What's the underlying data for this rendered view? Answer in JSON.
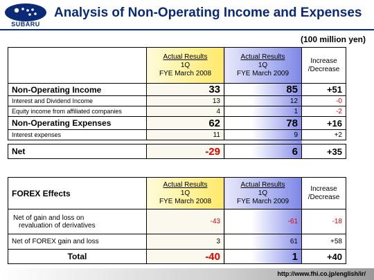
{
  "header": {
    "logo_text": "SUBARU",
    "title": "Analysis of Non-Operating Income and Expenses"
  },
  "units": "(100 million yen)",
  "table1": {
    "col_a": {
      "line1": "Actual Results",
      "line2": "1Q",
      "line3": "FYE March 2008"
    },
    "col_b": {
      "line1": "Actual Results",
      "line2": "1Q",
      "line3": "FYE March 2009"
    },
    "col_c": {
      "line1": "Increase",
      "line2": "/Decrease"
    },
    "rows": [
      {
        "label": "Non-Operating Income",
        "a": "33",
        "b": "85",
        "c": "+51"
      },
      {
        "label": "Interest and Dividend Income",
        "a": "13",
        "b": "12",
        "c": "-0"
      },
      {
        "label": "Equity income from affiliated companies",
        "a": "4",
        "b": "1",
        "c": "-2"
      },
      {
        "label": "Non-Operating Expenses",
        "a": "62",
        "b": "78",
        "c": "+16"
      },
      {
        "label": "Interest expenses",
        "a": "11",
        "b": "9",
        "c": "+2"
      },
      {
        "label": "Net",
        "a": "-29",
        "b": "6",
        "c": "+35"
      }
    ]
  },
  "table2": {
    "title": "FOREX Effects",
    "col_a": {
      "line1": "Actual Results",
      "line2": "1Q",
      "line3": "FYE March 2008"
    },
    "col_b": {
      "line1": "Actual Results",
      "line2": "1Q",
      "line3": "FYE March 2009"
    },
    "col_c": {
      "line1": "Increase",
      "line2": "/Decrease"
    },
    "rows": [
      {
        "label1": "Net of gain and loss on",
        "label2": "revaluation of derivatives",
        "a": "-43",
        "b": "-61",
        "c": "-18"
      },
      {
        "label": "Net of FOREX gain and loss",
        "a": "3",
        "b": "61",
        "c": "+58"
      },
      {
        "label": "Total",
        "a": "-40",
        "b": "1",
        "c": "+40"
      }
    ]
  },
  "footer": {
    "url": "http://www.fhi.co.jp/english/ir/"
  },
  "colors": {
    "title_blue": "#0a2a78",
    "negative_red": "#e00000",
    "col_a_yellow": "#fff3a0",
    "col_b_blue": "#8890e8"
  }
}
